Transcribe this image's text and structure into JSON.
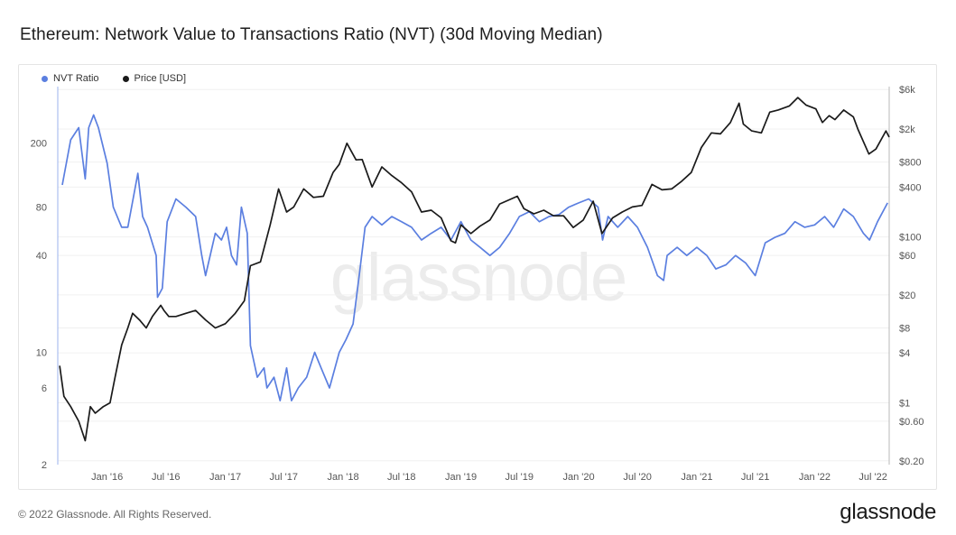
{
  "header": {
    "title": "Ethereum: Network Value to Transactions Ratio (NVT) (30d Moving Median)"
  },
  "footer": {
    "copyright": "© 2022 Glassnode. All Rights Reserved.",
    "logo_text": "glassnode"
  },
  "watermark": "glassnode",
  "colors": {
    "nvt": "#5b7fe0",
    "price": "#1a1a1a",
    "left_axis": "#9bb3ee",
    "right_axis": "#b9b9b9"
  },
  "chart_data": {
    "type": "line",
    "title": "Ethereum: Network Value to Transactions Ratio (NVT) (30d Moving Median)",
    "x_ticks": [
      "Jan '16",
      "Jul '16",
      "Jan '17",
      "Jul '17",
      "Jan '18",
      "Jul '18",
      "Jan '19",
      "Jul '19",
      "Jan '20",
      "Jul '20",
      "Jan '21",
      "Jul '21",
      "Jan '22",
      "Jul '22"
    ],
    "left_axis": {
      "scale": "log",
      "ticks": [
        2,
        6,
        10,
        40,
        80,
        200
      ],
      "tick_labels": [
        "2",
        "6",
        "10",
        "40",
        "80",
        "200"
      ],
      "range": [
        2,
        450
      ]
    },
    "right_axis": {
      "scale": "log",
      "ticks": [
        0.2,
        0.6,
        1,
        4,
        8,
        20,
        60,
        100,
        400,
        800,
        2000,
        6000
      ],
      "tick_labels": [
        "$0.20",
        "$0.60",
        "$1",
        "$4",
        "$8",
        "$20",
        "$60",
        "$100",
        "$400",
        "$800",
        "$2k",
        "$6k"
      ],
      "range": [
        0.18,
        6500
      ]
    },
    "x_range": [
      "2015-08-01",
      "2022-08-20"
    ],
    "legend_position": "top-left",
    "series": [
      {
        "name": "NVT Ratio",
        "axis": "left",
        "color": "#5b7fe0",
        "points": [
          [
            "2015-08-15",
            110
          ],
          [
            "2015-09-10",
            210
          ],
          [
            "2015-10-05",
            250
          ],
          [
            "2015-10-25",
            120
          ],
          [
            "2015-11-05",
            250
          ],
          [
            "2015-11-20",
            300
          ],
          [
            "2015-12-05",
            250
          ],
          [
            "2016-01-01",
            150
          ],
          [
            "2016-01-20",
            80
          ],
          [
            "2016-02-15",
            60
          ],
          [
            "2016-03-05",
            60
          ],
          [
            "2016-04-05",
            130
          ],
          [
            "2016-04-20",
            70
          ],
          [
            "2016-05-05",
            60
          ],
          [
            "2016-06-01",
            40
          ],
          [
            "2016-06-05",
            22
          ],
          [
            "2016-06-20",
            25
          ],
          [
            "2016-07-05",
            65
          ],
          [
            "2016-08-01",
            90
          ],
          [
            "2016-09-01",
            80
          ],
          [
            "2016-10-01",
            70
          ],
          [
            "2016-10-20",
            40
          ],
          [
            "2016-11-01",
            30
          ],
          [
            "2016-12-01",
            55
          ],
          [
            "2016-12-20",
            50
          ],
          [
            "2017-01-05",
            60
          ],
          [
            "2017-01-20",
            40
          ],
          [
            "2017-02-05",
            35
          ],
          [
            "2017-02-20",
            80
          ],
          [
            "2017-03-10",
            55
          ],
          [
            "2017-03-20",
            11
          ],
          [
            "2017-04-10",
            7
          ],
          [
            "2017-05-01",
            8
          ],
          [
            "2017-05-10",
            6
          ],
          [
            "2017-06-01",
            7
          ],
          [
            "2017-06-20",
            5
          ],
          [
            "2017-07-10",
            8
          ],
          [
            "2017-07-25",
            5
          ],
          [
            "2017-08-15",
            6
          ],
          [
            "2017-09-10",
            7
          ],
          [
            "2017-10-05",
            10
          ],
          [
            "2017-10-25",
            8
          ],
          [
            "2017-11-20",
            6
          ],
          [
            "2017-12-20",
            10
          ],
          [
            "2018-01-10",
            12
          ],
          [
            "2018-02-01",
            15
          ],
          [
            "2018-02-20",
            30
          ],
          [
            "2018-03-10",
            60
          ],
          [
            "2018-04-01",
            70
          ],
          [
            "2018-05-01",
            62
          ],
          [
            "2018-06-01",
            70
          ],
          [
            "2018-07-01",
            65
          ],
          [
            "2018-08-01",
            60
          ],
          [
            "2018-09-01",
            50
          ],
          [
            "2018-10-01",
            55
          ],
          [
            "2018-11-01",
            60
          ],
          [
            "2018-12-01",
            50
          ],
          [
            "2019-01-01",
            65
          ],
          [
            "2019-02-01",
            50
          ],
          [
            "2019-03-01",
            45
          ],
          [
            "2019-04-01",
            40
          ],
          [
            "2019-05-01",
            45
          ],
          [
            "2019-06-01",
            55
          ],
          [
            "2019-07-01",
            70
          ],
          [
            "2019-08-01",
            75
          ],
          [
            "2019-09-01",
            65
          ],
          [
            "2019-10-01",
            70
          ],
          [
            "2019-11-01",
            72
          ],
          [
            "2019-12-01",
            80
          ],
          [
            "2020-01-01",
            85
          ],
          [
            "2020-02-01",
            90
          ],
          [
            "2020-03-01",
            80
          ],
          [
            "2020-03-15",
            50
          ],
          [
            "2020-04-01",
            70
          ],
          [
            "2020-05-01",
            60
          ],
          [
            "2020-06-01",
            70
          ],
          [
            "2020-07-01",
            60
          ],
          [
            "2020-08-01",
            45
          ],
          [
            "2020-09-01",
            30
          ],
          [
            "2020-09-20",
            28
          ],
          [
            "2020-10-01",
            40
          ],
          [
            "2020-11-01",
            45
          ],
          [
            "2020-12-01",
            40
          ],
          [
            "2021-01-01",
            45
          ],
          [
            "2021-02-01",
            40
          ],
          [
            "2021-03-01",
            33
          ],
          [
            "2021-04-01",
            35
          ],
          [
            "2021-05-01",
            40
          ],
          [
            "2021-06-01",
            36
          ],
          [
            "2021-07-01",
            30
          ],
          [
            "2021-08-01",
            48
          ],
          [
            "2021-09-01",
            52
          ],
          [
            "2021-10-01",
            55
          ],
          [
            "2021-11-01",
            65
          ],
          [
            "2021-12-01",
            60
          ],
          [
            "2022-01-01",
            62
          ],
          [
            "2022-02-01",
            70
          ],
          [
            "2022-03-01",
            60
          ],
          [
            "2022-04-01",
            78
          ],
          [
            "2022-05-01",
            70
          ],
          [
            "2022-06-01",
            55
          ],
          [
            "2022-06-20",
            50
          ],
          [
            "2022-07-15",
            65
          ],
          [
            "2022-08-15",
            85
          ]
        ]
      },
      {
        "name": "Price [USD]",
        "axis": "right",
        "color": "#1a1a1a",
        "points": [
          [
            "2015-08-07",
            2.8
          ],
          [
            "2015-08-20",
            1.2
          ],
          [
            "2015-09-10",
            0.9
          ],
          [
            "2015-10-05",
            0.6
          ],
          [
            "2015-10-25",
            0.35
          ],
          [
            "2015-11-10",
            0.9
          ],
          [
            "2015-11-25",
            0.75
          ],
          [
            "2015-12-20",
            0.9
          ],
          [
            "2016-01-10",
            1.0
          ],
          [
            "2016-01-25",
            2.0
          ],
          [
            "2016-02-15",
            5.0
          ],
          [
            "2016-03-05",
            8.0
          ],
          [
            "2016-03-20",
            12.0
          ],
          [
            "2016-04-10",
            10.0
          ],
          [
            "2016-05-01",
            8.0
          ],
          [
            "2016-05-20",
            11.0
          ],
          [
            "2016-06-15",
            15.0
          ],
          [
            "2016-06-25",
            13.0
          ],
          [
            "2016-07-10",
            11.0
          ],
          [
            "2016-08-01",
            11.0
          ],
          [
            "2016-09-01",
            12.0
          ],
          [
            "2016-10-01",
            13.0
          ],
          [
            "2016-11-01",
            10.0
          ],
          [
            "2016-12-01",
            8.0
          ],
          [
            "2017-01-01",
            9.0
          ],
          [
            "2017-02-01",
            12.0
          ],
          [
            "2017-03-01",
            17.0
          ],
          [
            "2017-03-20",
            45.0
          ],
          [
            "2017-04-20",
            50.0
          ],
          [
            "2017-05-20",
            140.0
          ],
          [
            "2017-06-15",
            380.0
          ],
          [
            "2017-07-10",
            200.0
          ],
          [
            "2017-08-01",
            230.0
          ],
          [
            "2017-09-01",
            380.0
          ],
          [
            "2017-10-01",
            300.0
          ],
          [
            "2017-11-01",
            310.0
          ],
          [
            "2017-12-01",
            600.0
          ],
          [
            "2017-12-20",
            750.0
          ],
          [
            "2018-01-13",
            1350.0
          ],
          [
            "2018-02-10",
            850.0
          ],
          [
            "2018-03-01",
            860.0
          ],
          [
            "2018-04-01",
            400.0
          ],
          [
            "2018-05-01",
            700.0
          ],
          [
            "2018-06-01",
            550.0
          ],
          [
            "2018-07-01",
            450.0
          ],
          [
            "2018-08-01",
            350.0
          ],
          [
            "2018-09-01",
            200.0
          ],
          [
            "2018-10-01",
            210.0
          ],
          [
            "2018-11-01",
            170.0
          ],
          [
            "2018-12-01",
            90.0
          ],
          [
            "2018-12-15",
            85.0
          ],
          [
            "2019-01-01",
            140.0
          ],
          [
            "2019-02-01",
            110.0
          ],
          [
            "2019-03-01",
            135.0
          ],
          [
            "2019-04-01",
            160.0
          ],
          [
            "2019-05-01",
            250.0
          ],
          [
            "2019-06-25",
            310.0
          ],
          [
            "2019-07-15",
            220.0
          ],
          [
            "2019-08-15",
            190.0
          ],
          [
            "2019-09-15",
            210.0
          ],
          [
            "2019-10-15",
            180.0
          ],
          [
            "2019-11-15",
            180.0
          ],
          [
            "2019-12-15",
            130.0
          ],
          [
            "2020-01-15",
            160.0
          ],
          [
            "2020-02-15",
            270.0
          ],
          [
            "2020-03-13",
            110.0
          ],
          [
            "2020-04-15",
            170.0
          ],
          [
            "2020-05-15",
            200.0
          ],
          [
            "2020-06-15",
            230.0
          ],
          [
            "2020-07-15",
            240.0
          ],
          [
            "2020-08-15",
            430.0
          ],
          [
            "2020-09-15",
            370.0
          ],
          [
            "2020-10-15",
            380.0
          ],
          [
            "2020-11-15",
            470.0
          ],
          [
            "2020-12-15",
            600.0
          ],
          [
            "2021-01-15",
            1200.0
          ],
          [
            "2021-02-15",
            1800.0
          ],
          [
            "2021-03-15",
            1750.0
          ],
          [
            "2021-04-15",
            2400.0
          ],
          [
            "2021-05-12",
            4100.0
          ],
          [
            "2021-05-25",
            2300.0
          ],
          [
            "2021-06-20",
            1900.0
          ],
          [
            "2021-07-20",
            1800.0
          ],
          [
            "2021-08-15",
            3200.0
          ],
          [
            "2021-09-10",
            3400.0
          ],
          [
            "2021-10-15",
            3800.0
          ],
          [
            "2021-11-10",
            4800.0
          ],
          [
            "2021-12-05",
            3900.0
          ],
          [
            "2022-01-05",
            3500.0
          ],
          [
            "2022-01-25",
            2400.0
          ],
          [
            "2022-02-15",
            2900.0
          ],
          [
            "2022-03-05",
            2600.0
          ],
          [
            "2022-04-01",
            3400.0
          ],
          [
            "2022-05-01",
            2800.0
          ],
          [
            "2022-05-15",
            2000.0
          ],
          [
            "2022-06-18",
            1000.0
          ],
          [
            "2022-07-10",
            1150.0
          ],
          [
            "2022-08-10",
            1900.0
          ],
          [
            "2022-08-20",
            1600.0
          ]
        ]
      }
    ]
  }
}
